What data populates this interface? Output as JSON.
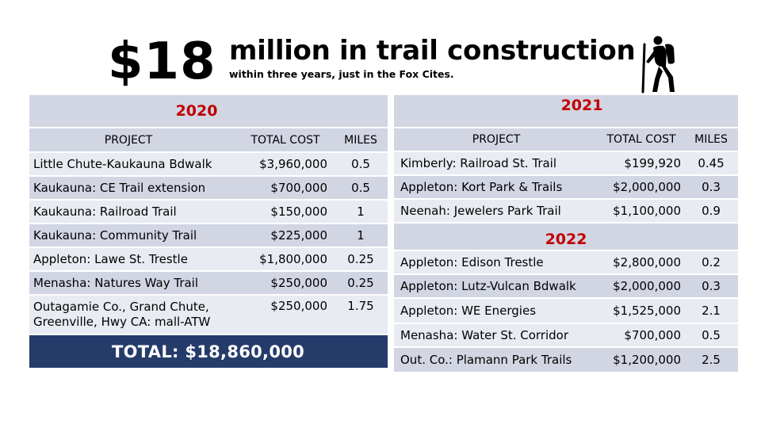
{
  "headline": {
    "amount": "$18",
    "title": "million in trail construction",
    "subtitle": "within three years, just in the Fox Cites."
  },
  "icons": {
    "hiker": "hiker-icon"
  },
  "colors": {
    "year_red": "#c00000",
    "band_light": "#e9ebf2",
    "band_dark": "#d2d6e3",
    "total_navy": "#253c6b"
  },
  "table_2020": {
    "year": "2020",
    "headers": {
      "project": "PROJECT",
      "cost": "TOTAL COST",
      "miles": "MILES"
    },
    "rows": [
      {
        "project": "Little Chute-Kaukauna Bdwalk",
        "cost": "$3,960,000",
        "miles": "0.5"
      },
      {
        "project": "Kaukauna: CE Trail extension",
        "cost": "$700,000",
        "miles": "0.5"
      },
      {
        "project": "Kaukauna: Railroad Trail",
        "cost": "$150,000",
        "miles": "1"
      },
      {
        "project": "Kaukauna: Community Trail",
        "cost": "$225,000",
        "miles": "1"
      },
      {
        "project": "Appleton: Lawe St. Trestle",
        "cost": "$1,800,000",
        "miles": "0.25"
      },
      {
        "project": "Menasha: Natures Way Trail",
        "cost": "$250,000",
        "miles": "0.25"
      },
      {
        "project": "Outagamie Co., Grand Chute, Greenville, Hwy CA: mall-ATW",
        "cost": "$250,000",
        "miles": "1.75"
      }
    ],
    "total": "TOTAL: $18,860,000"
  },
  "table_2021": {
    "year": "2021",
    "headers": {
      "project": "PROJECT",
      "cost": "TOTAL COST",
      "miles": "MILES"
    },
    "rows": [
      {
        "project": "Kimberly: Railroad St. Trail",
        "cost": "$199,920",
        "miles": "0.45"
      },
      {
        "project": "Appleton: Kort Park & Trails",
        "cost": "$2,000,000",
        "miles": "0.3"
      },
      {
        "project": "Neenah: Jewelers Park Trail",
        "cost": "$1,100,000",
        "miles": "0.9"
      }
    ]
  },
  "table_2022": {
    "year": "2022",
    "rows": [
      {
        "project": "Appleton: Edison Trestle",
        "cost": "$2,800,000",
        "miles": "0.2"
      },
      {
        "project": "Appleton: Lutz-Vulcan Bdwalk",
        "cost": "$2,000,000",
        "miles": "0.3"
      },
      {
        "project": "Appleton: WE Energies",
        "cost": "$1,525,000",
        "miles": "2.1"
      },
      {
        "project": "Menasha: Water St. Corridor",
        "cost": "$700,000",
        "miles": "0.5"
      },
      {
        "project": "Out. Co.: Plamann Park Trails",
        "cost": "$1,200,000",
        "miles": "2.5"
      }
    ]
  }
}
